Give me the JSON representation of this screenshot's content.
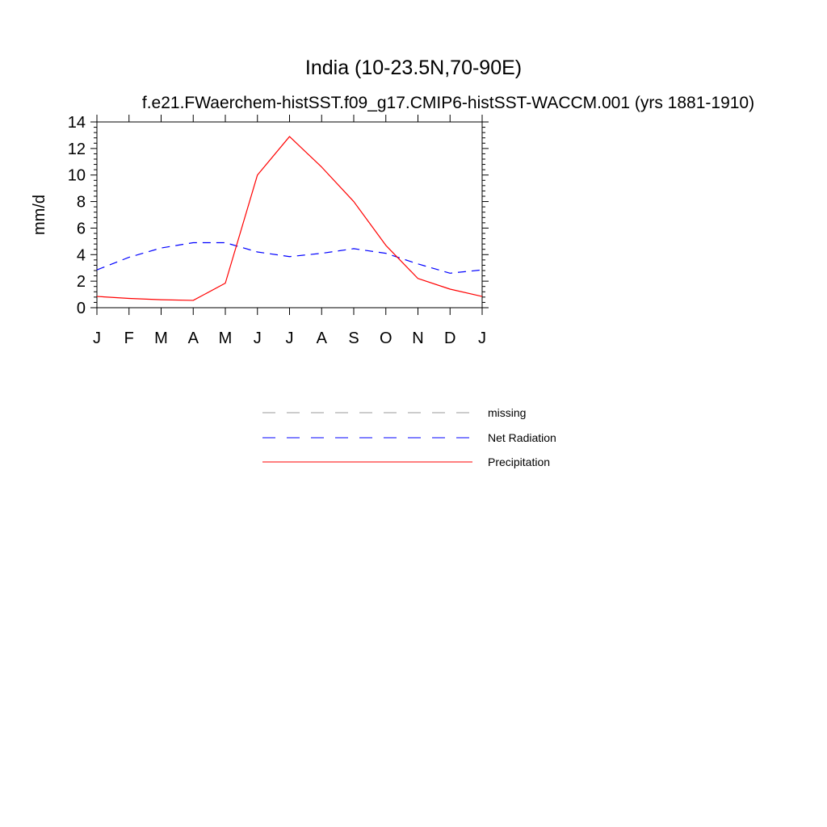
{
  "chart_data": {
    "type": "line",
    "title": "India (10-23.5N,70-90E)",
    "subtitle": "f.e21.FWaerchem-histSST.f09_g17.CMIP6-histSST-WACCM.001 (yrs 1881-1910)",
    "ylabel": "mm/d",
    "xlabel": "",
    "categories": [
      "J",
      "F",
      "M",
      "A",
      "M",
      "J",
      "J",
      "A",
      "S",
      "O",
      "N",
      "D",
      "J"
    ],
    "ylim": [
      0,
      14
    ],
    "yticks": [
      0,
      2,
      4,
      6,
      8,
      10,
      12,
      14
    ],
    "grid": false,
    "series": [
      {
        "name": "Net Radiation",
        "color": "#0000ff",
        "dash": "dashed",
        "values": [
          2.85,
          3.8,
          4.5,
          4.9,
          4.9,
          4.2,
          3.85,
          4.1,
          4.45,
          4.1,
          3.3,
          2.6,
          2.85
        ]
      },
      {
        "name": "Precipitation",
        "color": "#ff0000",
        "dash": "solid",
        "values": [
          0.85,
          0.7,
          0.6,
          0.55,
          1.85,
          10.0,
          12.9,
          10.6,
          8.0,
          4.7,
          2.2,
          1.4,
          0.85
        ]
      }
    ],
    "legend": {
      "placement": "below",
      "entries": [
        {
          "label": "missing",
          "color": "#999999",
          "dash": "dashed"
        },
        {
          "label": "Net Radiation",
          "color": "#0000ff",
          "dash": "dashed"
        },
        {
          "label": "Precipitation",
          "color": "#ff0000",
          "dash": "solid"
        }
      ]
    }
  }
}
